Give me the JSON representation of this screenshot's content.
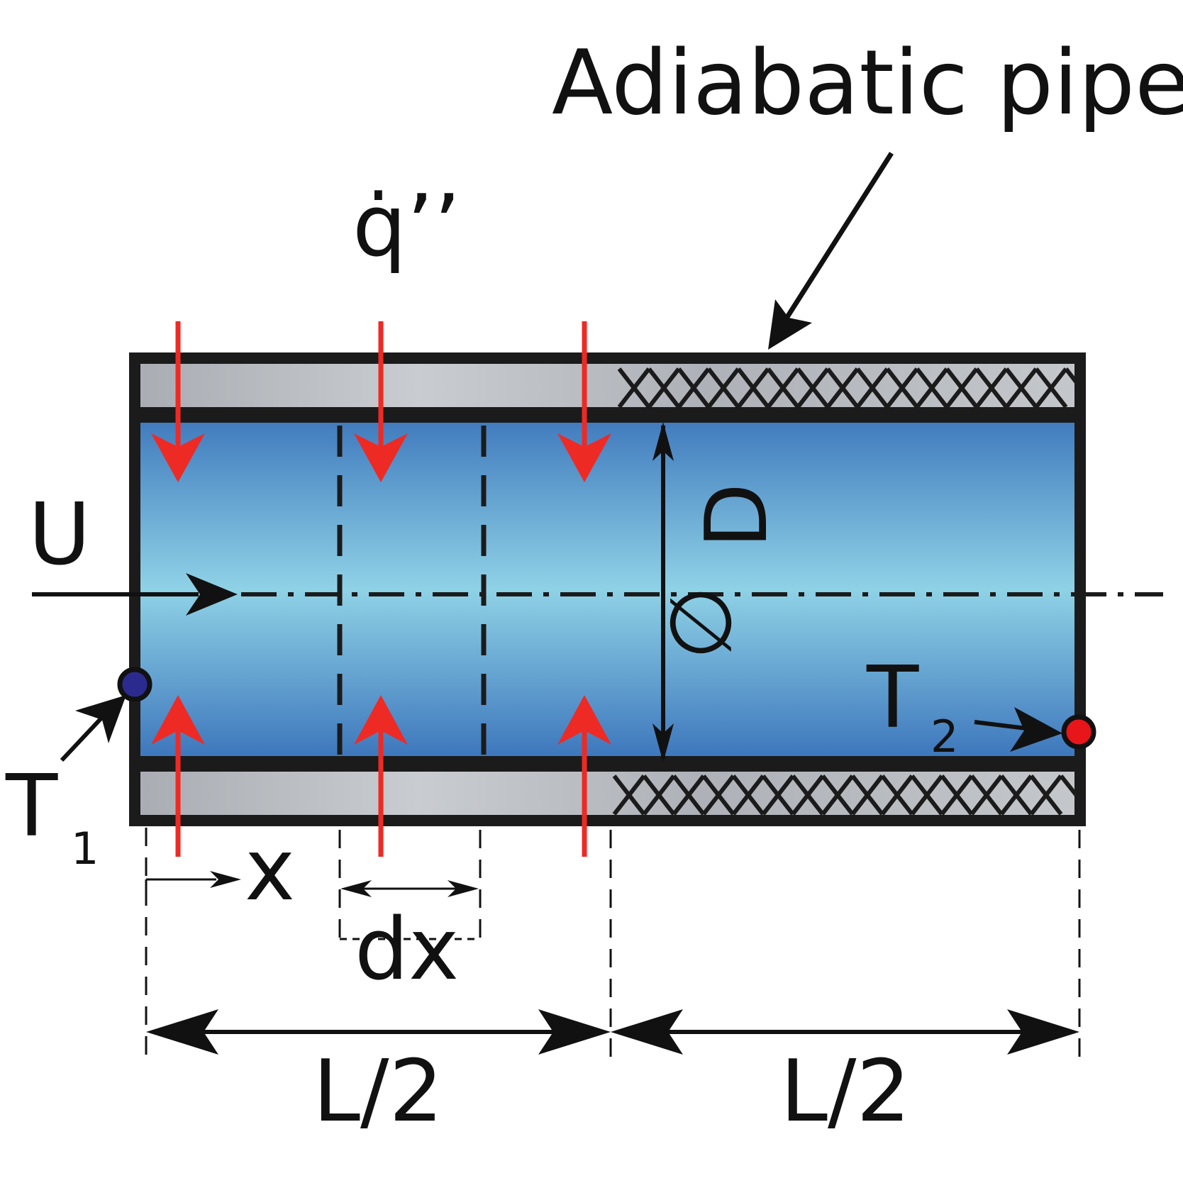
{
  "labels": {
    "title": "Adiabatic pipe",
    "heat_flux": "q̇’’",
    "velocity": "U",
    "diameter_letter": "D",
    "diameter_symbol": "∅",
    "t1_letter": "T",
    "t1_sub": "1",
    "t2_letter": "T",
    "t2_sub": "2",
    "x": "x",
    "dx": "dx",
    "half_length_left": "L/2",
    "half_length_right": "L/2"
  },
  "colors": {
    "heat_arrow": "#ee2a24",
    "inlet_dot": "#2b2b8f",
    "outlet_dot": "#e8151b",
    "outline": "#1b1b1b",
    "wall_gray": "#b8bcc2"
  }
}
